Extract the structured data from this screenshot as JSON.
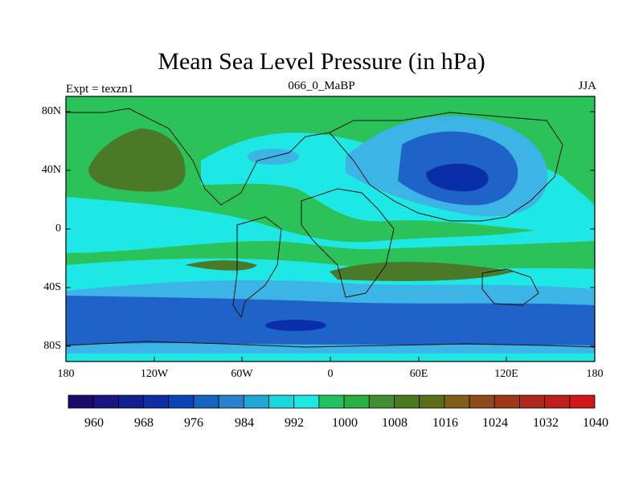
{
  "title": "Mean Sea Level Pressure (in hPa)",
  "left_label": "Expt = texzn1",
  "center_label": "066_0_MaBP",
  "right_label": "JJA",
  "y_ticks": [
    "80N",
    "40N",
    "0",
    "40S",
    "80S"
  ],
  "x_ticks": [
    "180",
    "120W",
    "60W",
    "0",
    "60E",
    "120E",
    "180"
  ],
  "colorbar": {
    "labels": [
      "960",
      "968",
      "976",
      "984",
      "992",
      "1000",
      "1008",
      "1016",
      "1024",
      "1032",
      "1040"
    ],
    "colors": [
      "#1b0a6e",
      "#1a1580",
      "#12208f",
      "#0d2fa3",
      "#0a45b8",
      "#1565c0",
      "#2a82cc",
      "#22a8d8",
      "#1ad8e0",
      "#1ee8e6",
      "#22c060",
      "#28b040",
      "#3e9030",
      "#4a7a20",
      "#5a6e18",
      "#806018",
      "#8e4a18",
      "#a03818",
      "#ad2818",
      "#bc2018",
      "#d01818"
    ]
  },
  "colors": {
    "deep_blue": "#0a2ea8",
    "blue": "#1f63c8",
    "mid_blue": "#1b8fd6",
    "light_blue": "#3db4e6",
    "cyan": "#1ee8e6",
    "green": "#2cc25a",
    "olive": "#4a7a28"
  }
}
